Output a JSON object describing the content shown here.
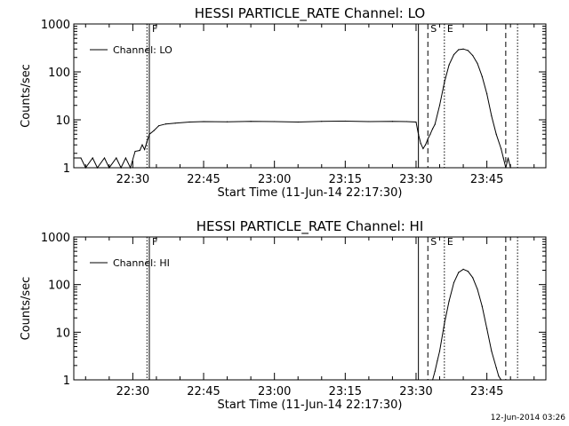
{
  "chart_data": [
    {
      "type": "line",
      "title": "HESSI PARTICLE_RATE Channel: LO",
      "xlabel": "Start Time (11-Jun-14 22:17:30)",
      "ylabel": "Counts/sec",
      "y_scale": "log",
      "ylim": [
        1,
        1000
      ],
      "xlim": [
        "22:17:30",
        "23:57:30"
      ],
      "x_ticks": [
        "22:30",
        "22:45",
        "23:00",
        "23:15",
        "23:30",
        "23:45"
      ],
      "y_ticks": [
        "1",
        "10",
        "100",
        "1000"
      ],
      "legend": {
        "position": "top-left",
        "entries": [
          "Channel: LO"
        ]
      },
      "event_markers": [
        {
          "label": "F",
          "time": "22:33:30",
          "style": "solid"
        },
        {
          "label": "",
          "time": "22:33:00",
          "style": "dotted"
        },
        {
          "label": "",
          "time": "23:30:30",
          "style": "solid"
        },
        {
          "label": "S",
          "time": "23:32:30",
          "style": "dashed"
        },
        {
          "label": "E",
          "time": "23:36:00",
          "style": "dotted"
        },
        {
          "label": "",
          "time": "23:49:00",
          "style": "dashed"
        },
        {
          "label": "",
          "time": "23:51:30",
          "style": "dotted"
        }
      ],
      "series": [
        {
          "name": "Channel: LO",
          "x": [
            "22:17:30",
            "22:19:00",
            "22:20:00",
            "22:21:30",
            "22:22:30",
            "22:24:00",
            "22:25:00",
            "22:26:30",
            "22:27:30",
            "22:28:30",
            "22:29:30",
            "22:30:30",
            "22:31:30",
            "22:32:00",
            "22:32:30",
            "22:33:00",
            "22:33:30",
            "22:34:30",
            "22:35:30",
            "22:37:00",
            "22:39:00",
            "22:42:00",
            "22:45:00",
            "22:50:00",
            "22:55:00",
            "23:00:00",
            "23:05:00",
            "23:10:00",
            "23:15:00",
            "23:20:00",
            "23:25:00",
            "23:28:00",
            "23:30:00",
            "23:30:30",
            "23:31:00",
            "23:31:30",
            "23:32:00",
            "23:32:30",
            "23:33:00",
            "23:33:30",
            "23:34:00",
            "23:35:00",
            "23:36:00",
            "23:37:00",
            "23:38:00",
            "23:39:00",
            "23:40:00",
            "23:41:00",
            "23:42:00",
            "23:43:00",
            "23:44:00",
            "23:45:00",
            "23:46:00",
            "23:47:00",
            "23:48:00",
            "23:48:30",
            "23:49:00",
            "23:49:30",
            "23:50:00"
          ],
          "values": [
            1.6,
            1.6,
            1,
            1.6,
            1,
            1.6,
            1,
            1.6,
            1,
            1.6,
            1,
            2.2,
            2.3,
            3,
            2.4,
            3.5,
            5,
            6,
            7.5,
            8.2,
            8.5,
            9,
            9.2,
            9.1,
            9.3,
            9.2,
            9.0,
            9.3,
            9.4,
            9.2,
            9.3,
            9.2,
            9.0,
            5,
            3.2,
            2.5,
            3,
            4,
            5,
            6.5,
            8,
            20,
            60,
            140,
            230,
            290,
            300,
            280,
            220,
            150,
            80,
            35,
            12,
            5,
            2.5,
            1.6,
            1,
            1.6,
            1
          ]
        }
      ]
    },
    {
      "type": "line",
      "title": "HESSI PARTICLE_RATE Channel: HI",
      "xlabel": "Start Time (11-Jun-14 22:17:30)",
      "ylabel": "Counts/sec",
      "y_scale": "log",
      "ylim": [
        1,
        1000
      ],
      "xlim": [
        "22:17:30",
        "23:57:30"
      ],
      "x_ticks": [
        "22:30",
        "22:45",
        "23:00",
        "23:15",
        "23:30",
        "23:45"
      ],
      "y_ticks": [
        "1",
        "10",
        "100",
        "1000"
      ],
      "legend": {
        "position": "top-left",
        "entries": [
          "Channel: HI"
        ]
      },
      "event_markers": [
        {
          "label": "F",
          "time": "22:33:30",
          "style": "solid"
        },
        {
          "label": "",
          "time": "22:33:00",
          "style": "dotted"
        },
        {
          "label": "",
          "time": "23:30:30",
          "style": "solid"
        },
        {
          "label": "S",
          "time": "23:32:30",
          "style": "dashed"
        },
        {
          "label": "E",
          "time": "23:36:00",
          "style": "dotted"
        },
        {
          "label": "",
          "time": "23:49:00",
          "style": "dashed"
        },
        {
          "label": "",
          "time": "23:51:30",
          "style": "dotted"
        }
      ],
      "series": [
        {
          "name": "Channel: HI",
          "x": [
            "23:33:30",
            "23:34:00",
            "23:34:30",
            "23:35:00",
            "23:36:00",
            "23:37:00",
            "23:38:00",
            "23:39:00",
            "23:40:00",
            "23:41:00",
            "23:42:00",
            "23:43:00",
            "23:44:00",
            "23:45:00",
            "23:46:00",
            "23:47:00",
            "23:47:30",
            "23:48:00"
          ],
          "values": [
            1,
            1.5,
            2.5,
            4,
            15,
            45,
            110,
            180,
            210,
            190,
            140,
            80,
            35,
            12,
            4,
            1.8,
            1.2,
            1
          ]
        }
      ]
    }
  ],
  "timestamp": "12-Jun-2014 03:26"
}
